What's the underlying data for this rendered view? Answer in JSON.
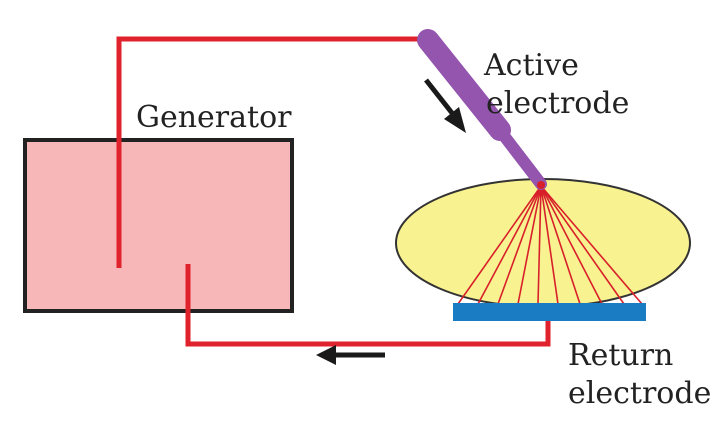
{
  "labels": {
    "generator": "Generator",
    "active_line1": "Active",
    "active_line2": "electrode",
    "return_line1": "Return",
    "return_line2": "electrode"
  },
  "colors": {
    "generator_fill": "#f7b6b8",
    "generator_border": "#222222",
    "wire": "#e0222c",
    "active_electrode": "#9355ad",
    "tissue_fill": "#f9f290",
    "tissue_border": "#333333",
    "return_pad": "#1a7dc4",
    "current_lines": "#d8202a",
    "arrow": "#1a1a1a"
  },
  "icons": {
    "active_flow": "arrow-down-right-icon",
    "return_flow": "arrow-left-icon"
  }
}
